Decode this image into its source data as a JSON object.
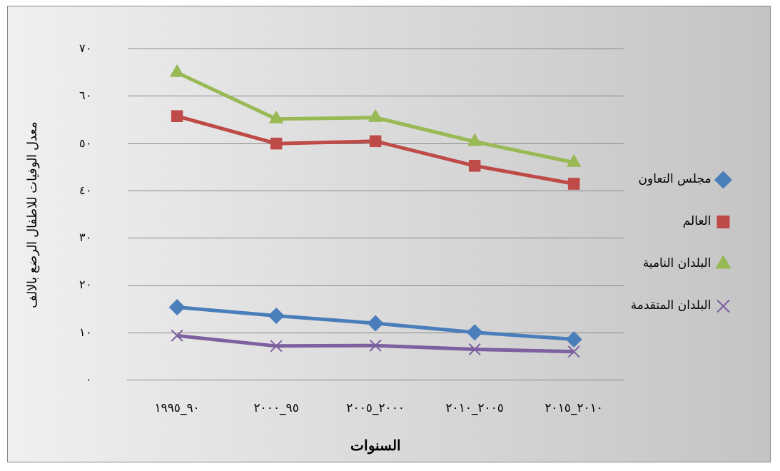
{
  "chart_data": {
    "type": "line",
    "xlabel": "السنوات",
    "ylabel": "معدل الوفيات للاطفال الرضع بالالف",
    "categories": [
      "٩٠_١٩٩٥",
      "٩٥_٢٠٠٠",
      "٢٠٠٠_٢٠٠٥",
      "٢٠٠٥_٢٠١٠",
      "٢٠١٠_٢٠١٥"
    ],
    "series": [
      {
        "name": "مجلس التعاون",
        "color": "#4a7ebb",
        "marker": "diamond",
        "values": [
          15.4,
          13.6,
          12.0,
          10.1,
          8.6
        ]
      },
      {
        "name": "العالم",
        "color": "#be4b48",
        "marker": "square",
        "values": [
          55.8,
          50.0,
          50.5,
          45.3,
          41.5
        ]
      },
      {
        "name": "البلدان النامية",
        "color": "#98b954",
        "marker": "triangle",
        "values": [
          65.0,
          55.2,
          55.5,
          50.4,
          46.0
        ]
      },
      {
        "name": "البلدان المتقدمة",
        "color": "#7d60a0",
        "marker": "cross",
        "values": [
          9.4,
          7.2,
          7.3,
          6.5,
          6.0
        ]
      }
    ],
    "ylim": [
      0,
      70
    ],
    "yticks": [
      {
        "value": 0,
        "label": "٠"
      },
      {
        "value": 10,
        "label": "١٠"
      },
      {
        "value": 20,
        "label": "٢٠"
      },
      {
        "value": 30,
        "label": "٣٠"
      },
      {
        "value": 40,
        "label": "٤٠"
      },
      {
        "value": 50,
        "label": "٥٠"
      },
      {
        "value": 60,
        "label": "٦٠"
      },
      {
        "value": 70,
        "label": "٧٠"
      }
    ],
    "grid": "y",
    "legend": "right"
  }
}
